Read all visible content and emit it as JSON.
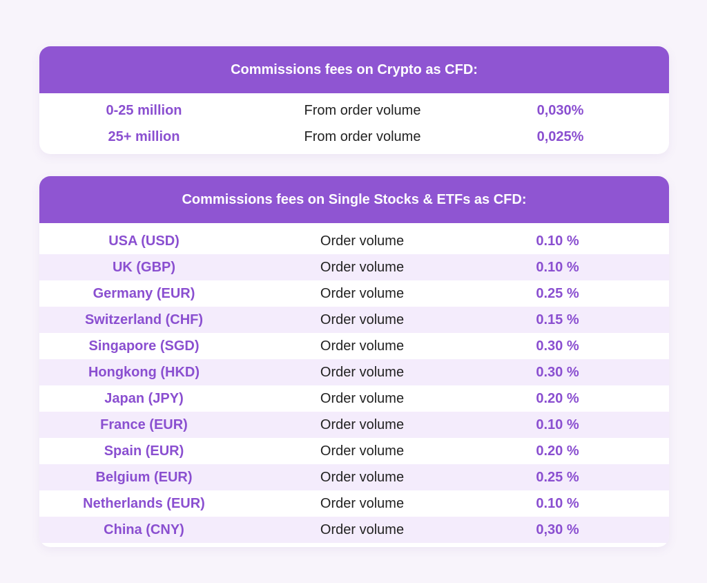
{
  "crypto": {
    "title": "Commissions fees on Crypto as CFD:",
    "rows": [
      {
        "tier": "0-25 million",
        "basis": "From order volume",
        "fee": "0,030%"
      },
      {
        "tier": "25+ million",
        "basis": "From order volume",
        "fee": "0,025%"
      }
    ]
  },
  "stocks": {
    "title": "Commissions fees on Single Stocks & ETFs as CFD:",
    "rows": [
      {
        "market": "USA (USD)",
        "basis": "Order volume",
        "fee": "0.10 %"
      },
      {
        "market": "UK (GBP)",
        "basis": "Order volume",
        "fee": "0.10 %"
      },
      {
        "market": "Germany (EUR)",
        "basis": "Order volume",
        "fee": "0.25 %"
      },
      {
        "market": "Switzerland (CHF)",
        "basis": "Order volume",
        "fee": "0.15 %"
      },
      {
        "market": "Singapore (SGD)",
        "basis": "Order volume",
        "fee": "0.30 %"
      },
      {
        "market": "Hongkong (HKD)",
        "basis": "Order volume",
        "fee": "0.30 %"
      },
      {
        "market": "Japan (JPY)",
        "basis": "Order volume",
        "fee": "0.20 %"
      },
      {
        "market": "France (EUR)",
        "basis": "Order volume",
        "fee": "0.10 %"
      },
      {
        "market": "Spain (EUR)",
        "basis": "Order volume",
        "fee": "0.20 %"
      },
      {
        "market": "Belgium (EUR)",
        "basis": "Order volume",
        "fee": "0.25 %"
      },
      {
        "market": "Netherlands (EUR)",
        "basis": "Order volume",
        "fee": "0.10 %"
      },
      {
        "market": "China (CNY)",
        "basis": "Order volume",
        "fee": "0,30 %"
      }
    ]
  },
  "colors": {
    "accent": "#8f55d2",
    "accent_text": "#8a4fd0",
    "stripe": "#f4ecfc",
    "background": "#f8f4fb"
  }
}
